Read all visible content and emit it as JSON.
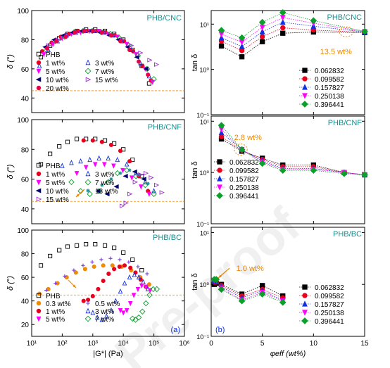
{
  "figure": {
    "panel_labels": [
      "(a)",
      "(b)"
    ],
    "watermark": "Pre-proof"
  },
  "left_axes": {
    "ylabel": "δ (°)",
    "xlabel": "|G*| (Pa)",
    "x_tick_labels": [
      "10¹",
      "10²",
      "10³",
      "10⁴",
      "10⁵",
      "10⁶"
    ],
    "y_tick_labels": [
      "40",
      "60",
      "80",
      "100"
    ],
    "bottom_y_tick_labels": [
      "20",
      "40",
      "60",
      "80",
      "100"
    ]
  },
  "right_axes": {
    "ylabel": "tan δ",
    "xlabel": "φeff (wt%)",
    "x_tick_labels": [
      "0",
      "5",
      "10",
      "15"
    ],
    "y_tick_labels": [
      "10⁻¹",
      "10⁰",
      "10¹"
    ]
  },
  "chart_data": [
    {
      "type": "scatter",
      "title": "PHB/CNC",
      "xscale": "log",
      "xlim": [
        10,
        1000000
      ],
      "ylim": [
        30,
        100
      ],
      "reference_line": 45,
      "series": [
        {
          "name": "PHB",
          "color": "#000000",
          "marker": "square-open",
          "x": [
            20,
            40,
            80,
            150,
            300,
            600,
            1200,
            2500,
            5000,
            10000,
            20000,
            40000,
            70000
          ],
          "y": [
            68,
            76,
            81,
            84,
            86,
            87,
            87,
            86,
            84,
            80,
            73,
            62,
            50
          ]
        },
        {
          "name": "1 wt%",
          "color": "#e8001c",
          "marker": "circle",
          "x": [
            22,
            45,
            90,
            170,
            330,
            650,
            1300,
            2600,
            5200,
            10500,
            21000,
            42000,
            80000
          ],
          "y": [
            72,
            78,
            82,
            84,
            86,
            86,
            86,
            85,
            83,
            79,
            72,
            62,
            52
          ]
        },
        {
          "name": "3 wt%",
          "color": "#1030e0",
          "marker": "triangle-up-open",
          "x": [
            18,
            35,
            70,
            140,
            280,
            560,
            1100,
            2300,
            4600,
            9000,
            18000,
            36000,
            70000
          ],
          "y": [
            62,
            73,
            79,
            83,
            85,
            86,
            86,
            85,
            83,
            79,
            73,
            64,
            55
          ]
        },
        {
          "name": "5 wt%",
          "color": "#ff00ff",
          "marker": "triangle-down",
          "x": [
            25,
            50,
            100,
            200,
            400,
            800,
            1600,
            3200,
            6400,
            13000,
            26000,
            52000,
            90000
          ],
          "y": [
            70,
            77,
            81,
            84,
            85,
            86,
            86,
            84,
            82,
            77,
            70,
            60,
            51
          ]
        },
        {
          "name": "7 wt%",
          "color": "#0aa02a",
          "marker": "diamond-open",
          "x": [
            30,
            60,
            120,
            240,
            480,
            960,
            1900,
            3800,
            7600,
            15000,
            30000,
            60000,
            100000
          ],
          "y": [
            73,
            79,
            82,
            85,
            86,
            86,
            85,
            84,
            81,
            76,
            69,
            60,
            53
          ]
        },
        {
          "name": "10 wt%",
          "color": "#000070",
          "marker": "triangle-left",
          "x": [
            28,
            55,
            110,
            220,
            440,
            880,
            1750,
            3500,
            7000,
            14000,
            28000,
            56000
          ],
          "y": [
            75,
            80,
            83,
            85,
            86,
            86,
            85,
            83,
            80,
            75,
            68,
            60
          ]
        },
        {
          "name": "15 wt%",
          "color": "#9b2fc9",
          "marker": "triangle-right-open",
          "x": [
            35,
            70,
            140,
            280,
            560,
            1100,
            2200,
            4400,
            8800,
            18000,
            36000,
            72000,
            120000
          ],
          "y": [
            76,
            80,
            83,
            85,
            86,
            86,
            85,
            83,
            80,
            76,
            71,
            66,
            63
          ]
        },
        {
          "name": "20 wt%",
          "color": "#e8004a",
          "marker": "circle",
          "x": [
            32,
            64,
            130,
            260,
            520,
            1000,
            2000,
            4000,
            8000,
            16000,
            32000,
            64000
          ],
          "y": [
            74,
            79,
            82,
            85,
            86,
            86,
            85,
            83,
            79,
            73,
            65,
            56
          ]
        }
      ]
    },
    {
      "type": "scatter",
      "title": "PHB/CNF",
      "xscale": "log",
      "xlim": [
        10,
        1000000
      ],
      "ylim": [
        30,
        100
      ],
      "reference_line": 45,
      "series": [
        {
          "name": "PHB",
          "color": "#000000",
          "marker": "square-open",
          "x": [
            20,
            40,
            80,
            150,
            300,
            600,
            1200,
            2500,
            5000,
            10000,
            20000,
            40000
          ],
          "y": [
            70,
            77,
            82,
            85,
            87,
            87,
            87,
            86,
            84,
            80,
            73,
            62
          ]
        },
        {
          "name": "1 wt%",
          "color": "#e8001c",
          "marker": "circle",
          "x": [
            500,
            1000,
            2000,
            4000,
            8000,
            16000,
            32000,
            64000
          ],
          "y": [
            86,
            86,
            85,
            83,
            79,
            72,
            62,
            52
          ]
        },
        {
          "name": "3 wt%",
          "color": "#1030e0",
          "marker": "triangle-up-open",
          "x": [
            100,
            200,
            400,
            800,
            1600,
            3200,
            6400,
            13000,
            26000,
            52000,
            100000
          ],
          "y": [
            69,
            71,
            72,
            73,
            74,
            74,
            73,
            70,
            64,
            58,
            52
          ]
        },
        {
          "name": "5 wt%",
          "color": "#ff00ff",
          "marker": "triangle-down",
          "x": [
            300,
            600,
            1200,
            2400,
            4800,
            9600,
            19000,
            38000,
            70000
          ],
          "y": [
            64,
            68,
            70,
            70,
            69,
            66,
            61,
            55,
            50
          ]
        },
        {
          "name": "7 wt%",
          "color": "#0aa02a",
          "marker": "diamond-open",
          "x": [
            200,
            400,
            800,
            1600,
            3200,
            6400,
            13000,
            26000,
            52000,
            100000
          ],
          "y": [
            58,
            52,
            50,
            52,
            58,
            64,
            66,
            62,
            56,
            50
          ]
        },
        {
          "name": "10 wt%",
          "color": "#000070",
          "marker": "triangle-left",
          "x": [
            1500,
            3000,
            6000,
            12000,
            24000,
            48000
          ],
          "y": [
            52,
            50,
            55,
            62,
            65,
            60
          ]
        },
        {
          "name": "13 wt%",
          "color": "#1a8f8f",
          "marker": "star",
          "x": [
            2000,
            4000,
            8000,
            16000,
            32000,
            64000
          ],
          "y": [
            56,
            60,
            64,
            66,
            63,
            57
          ]
        },
        {
          "name": "15 wt%",
          "color": "#9b2fc9",
          "marker": "triangle-right-open",
          "x": [
            9000,
            12000,
            16000,
            24000,
            36000,
            54000,
            80000,
            120000,
            180000
          ],
          "y": [
            42,
            44,
            50,
            58,
            63,
            64,
            61,
            56,
            51
          ]
        }
      ]
    },
    {
      "type": "scatter",
      "title": "PHB/BC",
      "xscale": "log",
      "xlim": [
        10,
        1000000
      ],
      "ylim": [
        10,
        100
      ],
      "reference_line": 45,
      "series": [
        {
          "name": "PHB",
          "color": "#000000",
          "marker": "square-open",
          "x": [
            20,
            40,
            80,
            150,
            300,
            600,
            1200,
            2500,
            5000,
            10000,
            20000,
            40000
          ],
          "y": [
            70,
            78,
            83,
            86,
            87,
            88,
            88,
            87,
            85,
            81,
            75,
            66
          ]
        },
        {
          "name": "0.3 wt%",
          "color": "#f08a00",
          "marker": "circle",
          "x": [
            18,
            35,
            70,
            140,
            280,
            560,
            1100,
            2200,
            4400,
            8800,
            18000,
            36000,
            70000
          ],
          "y": [
            46,
            50,
            55,
            60,
            64,
            67,
            69,
            70,
            70,
            69,
            66,
            60,
            54
          ]
        },
        {
          "name": "0.5 wt%",
          "color": "#7b3ad8",
          "marker": "plus",
          "x": [
            30,
            60,
            120,
            240,
            480,
            960,
            1900,
            3800,
            7600,
            15000,
            30000,
            60000
          ],
          "y": [
            49,
            55,
            61,
            66,
            70,
            73,
            75,
            76,
            75,
            73,
            69,
            63
          ]
        },
        {
          "name": "1 wt%",
          "color": "#e8001c",
          "marker": "circle",
          "x": [
            500,
            700,
            1000,
            1500,
            2200,
            3300,
            5000,
            7500,
            11000,
            17000,
            25000,
            37000,
            55000
          ],
          "y": [
            40,
            41,
            44,
            50,
            57,
            63,
            67,
            69,
            70,
            68,
            64,
            58,
            52
          ]
        },
        {
          "name": "3 wt%",
          "color": "#1030e0",
          "marker": "triangle-up-open",
          "x": [
            1000,
            1400,
            2000,
            2800,
            4000,
            5600,
            8000,
            11000,
            16000,
            23000,
            32000,
            45000,
            64000
          ],
          "y": [
            30,
            26,
            24,
            27,
            32,
            40,
            48,
            55,
            60,
            62,
            60,
            56,
            50
          ]
        },
        {
          "name": "5 wt%",
          "color": "#ff00ff",
          "marker": "triangle-down",
          "x": [
            8000,
            10000,
            13000,
            17000,
            22000,
            30000,
            40000,
            55000,
            75000
          ],
          "y": [
            32,
            30,
            32,
            38,
            45,
            50,
            53,
            52,
            49
          ]
        },
        {
          "name": "7 wt%",
          "color": "#0aa02a",
          "marker": "diamond-open",
          "x": [
            20000,
            25000,
            32000,
            42000,
            55000,
            72000,
            95000,
            125000
          ],
          "y": [
            25,
            24,
            26,
            31,
            38,
            45,
            50,
            50
          ]
        }
      ]
    },
    {
      "type": "line",
      "title": "PHB/CNC",
      "yscale": "log",
      "xlim": [
        0,
        15
      ],
      "ylim": [
        0.1,
        20
      ],
      "annotation": "13.5 wt%",
      "x": [
        1,
        3,
        5,
        7,
        10,
        15
      ],
      "series": [
        {
          "name": "0.062832",
          "color": "#000000",
          "marker": "square",
          "values": [
            3.3,
            1.9,
            4.1,
            6.3,
            6.7,
            6.5
          ]
        },
        {
          "name": "0.099582",
          "color": "#e8001c",
          "marker": "circle",
          "values": [
            4.2,
            2.6,
            5.3,
            8.3,
            7.4,
            6.6
          ]
        },
        {
          "name": "0.157827",
          "color": "#1030e0",
          "marker": "triangle-up",
          "values": [
            5.0,
            3.2,
            6.8,
            11.0,
            9.0,
            6.7
          ]
        },
        {
          "name": "0.250138",
          "color": "#ff00ff",
          "marker": "triangle-down",
          "values": [
            6.0,
            4.0,
            8.5,
            14.0,
            10.5,
            6.8
          ]
        },
        {
          "name": "0.396441",
          "color": "#0aa02a",
          "marker": "diamond",
          "values": [
            7.3,
            5.0,
            11.0,
            18.0,
            12.0,
            6.9
          ]
        }
      ]
    },
    {
      "type": "line",
      "title": "PHB/CNF",
      "yscale": "log",
      "xlim": [
        0,
        15
      ],
      "ylim": [
        0.1,
        12
      ],
      "annotation": "2.8 wt%",
      "x": [
        1,
        3,
        5,
        7,
        10,
        13,
        15
      ],
      "series": [
        {
          "name": "0.062832",
          "color": "#000000",
          "marker": "square",
          "values": [
            4.5,
            2.6,
            1.9,
            1.4,
            1.4,
            1.0,
            0.9
          ]
        },
        {
          "name": "0.099582",
          "color": "#e8001c",
          "marker": "circle",
          "values": [
            5.0,
            2.7,
            1.8,
            1.3,
            1.3,
            1.0,
            0.9
          ]
        },
        {
          "name": "0.157827",
          "color": "#1030e0",
          "marker": "triangle-up",
          "values": [
            6.0,
            2.8,
            1.7,
            1.2,
            1.2,
            1.0,
            0.9
          ]
        },
        {
          "name": "0.250138",
          "color": "#ff00ff",
          "marker": "triangle-down",
          "values": [
            7.0,
            2.8,
            1.6,
            1.15,
            1.15,
            1.0,
            0.9
          ]
        },
        {
          "name": "0.396441",
          "color": "#0aa02a",
          "marker": "diamond",
          "values": [
            8.3,
            2.8,
            1.5,
            1.1,
            1.1,
            0.95,
            0.9
          ]
        }
      ]
    },
    {
      "type": "line",
      "title": "PHB/BC",
      "yscale": "log",
      "xlim": [
        0,
        15
      ],
      "ylim": [
        0.1,
        12
      ],
      "annotation": "1.0 wt%",
      "x": [
        0.3,
        0.5,
        1,
        3,
        5,
        7
      ],
      "series": [
        {
          "name": "0.062832",
          "color": "#000000",
          "marker": "square",
          "values": [
            1.0,
            1.05,
            1.0,
            0.65,
            0.95,
            0.6
          ]
        },
        {
          "name": "0.099582",
          "color": "#e8001c",
          "marker": "circle",
          "values": [
            1.1,
            1.1,
            0.95,
            0.6,
            0.8,
            0.55
          ]
        },
        {
          "name": "0.157827",
          "color": "#1030e0",
          "marker": "triangle-up",
          "values": [
            1.15,
            1.15,
            0.9,
            0.55,
            0.75,
            0.5
          ]
        },
        {
          "name": "0.250138",
          "color": "#ff00ff",
          "marker": "triangle-down",
          "values": [
            1.2,
            1.2,
            0.85,
            0.5,
            0.7,
            0.48
          ]
        },
        {
          "name": "0.396441",
          "color": "#0aa02a",
          "marker": "diamond",
          "values": [
            1.25,
            1.25,
            0.8,
            0.48,
            0.65,
            0.45
          ]
        }
      ]
    }
  ]
}
